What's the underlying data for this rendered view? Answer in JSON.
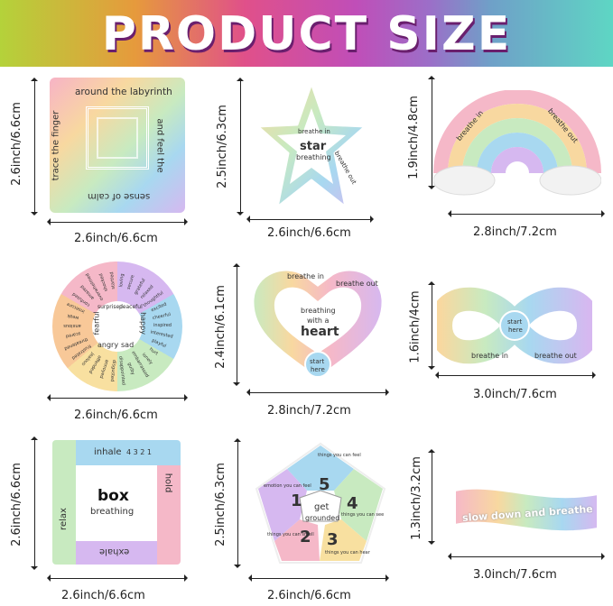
{
  "header": {
    "title": "PRODUCT SIZE"
  },
  "products": [
    {
      "name": "labyrinth",
      "height": "2.6inch/6.6cm",
      "width": "2.6inch/6.6cm",
      "texts": [
        "around the labyrinth",
        "and feel the",
        "sense of calm",
        "trace the finger"
      ]
    },
    {
      "name": "star",
      "height": "2.5inch/6.3cm",
      "width": "2.6inch/6.6cm",
      "texts": [
        "star",
        "breathing",
        "breathe in",
        "breathe out"
      ]
    },
    {
      "name": "rainbow",
      "height": "1.9inch/4.8cm",
      "width": "2.8inch/7.2cm",
      "texts": [
        "breathe in",
        "breathe out"
      ]
    },
    {
      "name": "emotion-wheel",
      "width": "2.6inch/6.6cm",
      "texts": [
        "fearful",
        "happy",
        "sad",
        "angry",
        "surprised",
        "peaceful"
      ],
      "emotions": [
        "loving",
        "secure",
        "grateful",
        "relaxed",
        "thoughtful",
        "excited",
        "cheerful",
        "inspired",
        "interested",
        "playful",
        "hurt",
        "lonely",
        "embarrassed",
        "guilty",
        "disappointed",
        "disgusted",
        "annoyed",
        "offended",
        "jealous",
        "frustrated",
        "threatened",
        "scared",
        "anxious",
        "weak",
        "insecure",
        "confused",
        "amazed",
        "overwhelmed",
        "shocked",
        "startled"
      ]
    },
    {
      "name": "heart",
      "height": "2.4inch/6.1cm",
      "width": "2.8inch/7.2cm",
      "texts": [
        "breathing",
        "with a",
        "heart",
        "start",
        "here",
        "breathe in",
        "breathe out"
      ]
    },
    {
      "name": "infinity",
      "height": "1.6inch/4cm",
      "width": "3.0inch/7.6cm",
      "texts": [
        "start",
        "here",
        "breathe in",
        "breathe out"
      ]
    },
    {
      "name": "box",
      "height": "2.6inch/6.6cm",
      "width": "2.6inch/6.6cm",
      "texts": [
        "box",
        "breathing",
        "inhale",
        "hold",
        "exhale",
        "relax",
        "4 3 2 1"
      ]
    },
    {
      "name": "pentagon",
      "height": "2.5inch/6.3cm",
      "width": "2.6inch/6.6cm",
      "texts": [
        "get",
        "grounded",
        "things you can feel",
        "emotion you can feel",
        "things you can see",
        "things you can smell",
        "things you can hear",
        "5",
        "1",
        "4",
        "2",
        "3"
      ]
    },
    {
      "name": "slow-down",
      "height": "1.3inch/3.2cm",
      "width": "3.0inch/7.6cm",
      "texts": [
        "slow down and breathe"
      ]
    }
  ]
}
